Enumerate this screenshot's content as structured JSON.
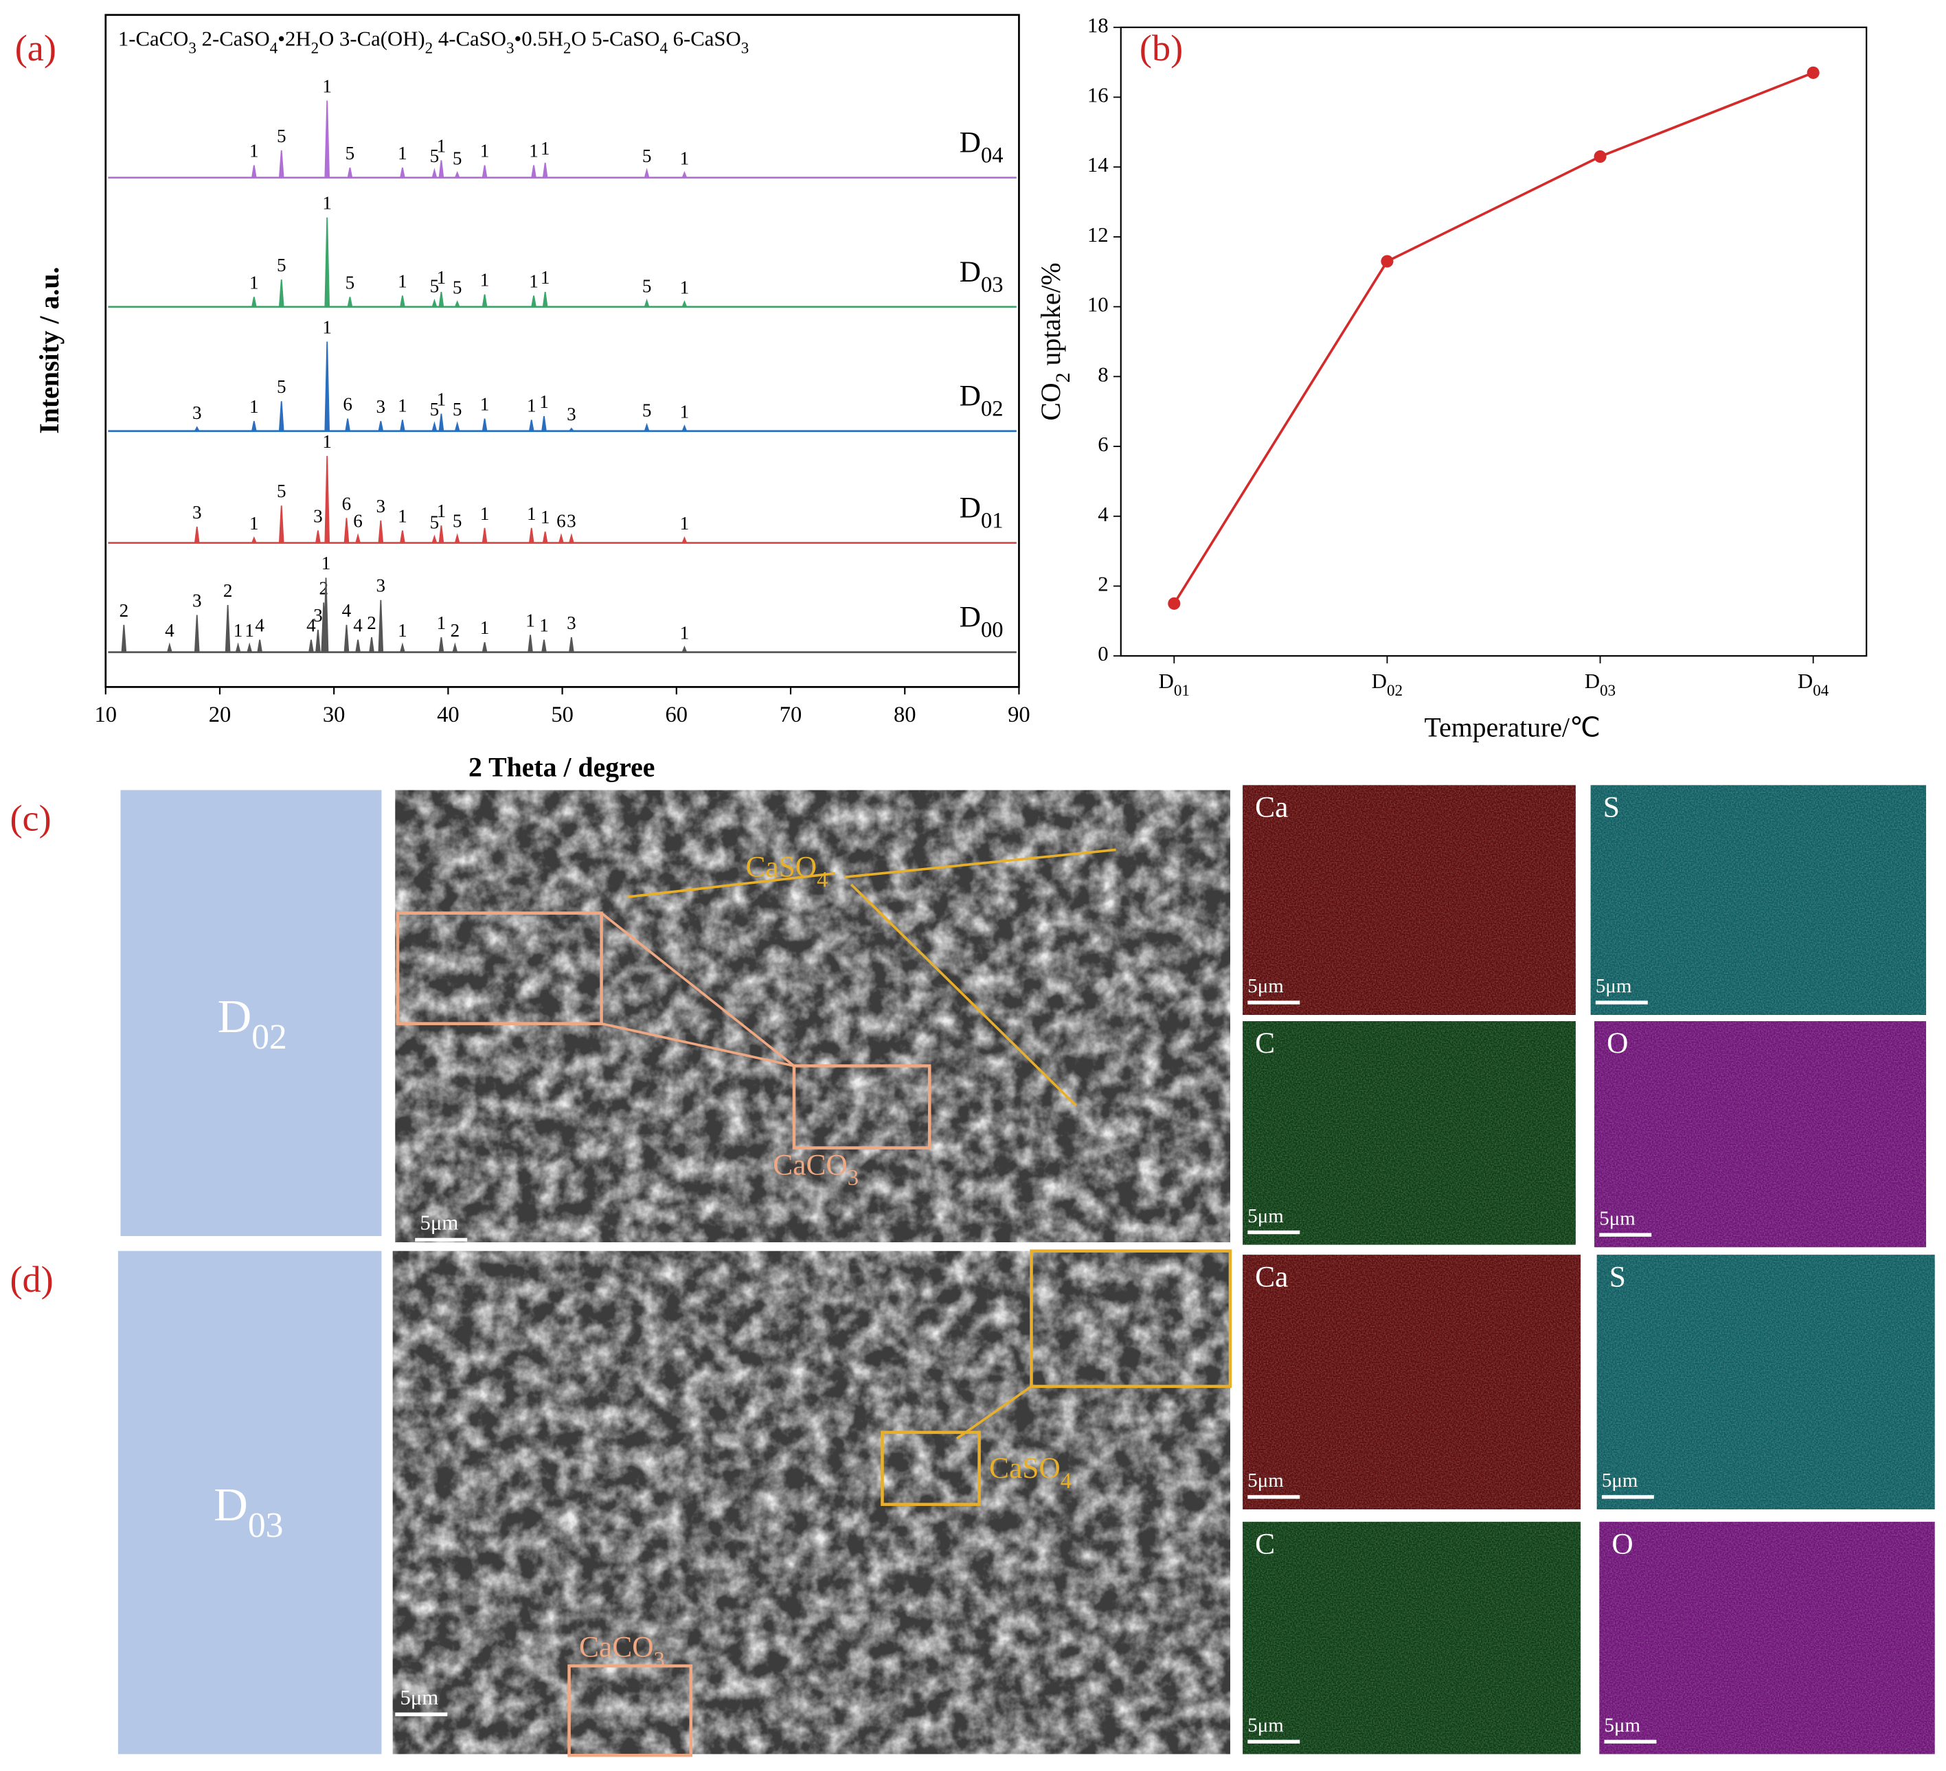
{
  "chart_data": [
    {
      "type": "xrd",
      "panel_label": "(a)",
      "legend_text": "1-CaCO3   2-CaSO4•2H2O  3-Ca(OH)2  4-CaSO3•0.5H2O  5-CaSO4  6-CaSO3",
      "xlabel": "2 Theta / degree",
      "ylabel": "Intensity / a.u.",
      "xlim": [
        10,
        90
      ],
      "xticks": [
        10,
        20,
        30,
        40,
        50,
        60,
        70,
        80,
        90
      ],
      "series": [
        {
          "name": "D04",
          "color": "#b06fd6",
          "x": [
            23.0,
            25.4,
            29.4,
            31.4,
            36.0,
            38.8,
            39.4,
            40.8,
            43.2,
            47.5,
            48.5,
            57.4,
            60.7
          ],
          "values": [
            10,
            22,
            62,
            8,
            8,
            6,
            14,
            4,
            10,
            10,
            12,
            6,
            4
          ],
          "peak_labels": [
            "1",
            "5",
            "1",
            "5",
            "1",
            "5",
            "1",
            "5",
            "1",
            "1",
            "1",
            "5",
            "1"
          ]
        },
        {
          "name": "D03",
          "color": "#3aa66a",
          "x": [
            23.0,
            25.4,
            29.4,
            31.4,
            36.0,
            38.8,
            39.4,
            40.8,
            43.2,
            47.5,
            48.5,
            57.4,
            60.7
          ],
          "values": [
            8,
            22,
            72,
            8,
            9,
            5,
            12,
            4,
            10,
            9,
            12,
            5,
            4
          ],
          "peak_labels": [
            "1",
            "5",
            "1",
            "5",
            "1",
            "5",
            "1",
            "5",
            "1",
            "1",
            "1",
            "5",
            "1"
          ]
        },
        {
          "name": "D02",
          "color": "#2a6fbf",
          "x": [
            18.0,
            23.0,
            25.4,
            29.4,
            31.2,
            34.1,
            36.0,
            38.8,
            39.4,
            40.8,
            43.2,
            47.3,
            48.4,
            50.8,
            57.4,
            60.7
          ],
          "values": [
            3,
            8,
            24,
            72,
            10,
            8,
            9,
            6,
            14,
            6,
            10,
            9,
            12,
            2,
            5,
            4
          ],
          "peak_labels": [
            "3",
            "1",
            "5",
            "1",
            "6",
            "3",
            "1",
            "5",
            "1",
            "5",
            "1",
            "1",
            "1",
            "3",
            "5",
            "1"
          ]
        },
        {
          "name": "D01",
          "color": "#d84444",
          "x": [
            18.0,
            23.0,
            25.4,
            28.6,
            29.4,
            31.1,
            32.1,
            34.1,
            36.0,
            38.8,
            39.4,
            40.8,
            43.2,
            47.3,
            48.5,
            49.9,
            50.8,
            60.7
          ],
          "values": [
            13,
            4,
            30,
            10,
            70,
            20,
            6,
            18,
            10,
            5,
            14,
            6,
            12,
            12,
            9,
            6,
            6,
            4
          ],
          "peak_labels": [
            "3",
            "1",
            "5",
            "3",
            "1",
            "6",
            "6",
            "3",
            "1",
            "5",
            "1",
            "5",
            "1",
            "1",
            "1",
            "6",
            "3",
            "1"
          ]
        },
        {
          "name": "D00",
          "color": "#555555",
          "x": [
            11.6,
            15.6,
            18.0,
            20.7,
            21.6,
            22.6,
            23.5,
            28.0,
            28.6,
            29.1,
            29.3,
            31.1,
            32.1,
            33.3,
            34.1,
            36.0,
            39.4,
            40.6,
            43.2,
            47.2,
            48.4,
            50.8,
            60.7
          ],
          "values": [
            22,
            6,
            30,
            38,
            6,
            6,
            10,
            10,
            18,
            40,
            60,
            22,
            10,
            12,
            42,
            6,
            12,
            6,
            8,
            14,
            10,
            12,
            4
          ],
          "peak_labels": [
            "2",
            "4",
            "3",
            "2",
            "1",
            "1",
            "4",
            "4",
            "3",
            "2",
            "1",
            "4",
            "4",
            "2",
            "3",
            "1",
            "1",
            "2",
            "1",
            "1",
            "1",
            "3",
            "1"
          ]
        }
      ]
    },
    {
      "type": "line",
      "panel_label": "(b)",
      "xlabel": "Temperature/℃",
      "ylabel": "CO2 uptake/%",
      "categories": [
        "D01",
        "D02",
        "D03",
        "D04"
      ],
      "values": [
        1.5,
        11.3,
        14.3,
        16.7
      ],
      "color": "#d42a2a",
      "ylim": [
        0,
        18
      ],
      "yticks": [
        0,
        2,
        4,
        6,
        8,
        10,
        12,
        14,
        16,
        18
      ]
    }
  ],
  "images": [
    {
      "panel_label": "(c)",
      "sample": "D02",
      "annotations": [
        "CaSO4",
        "CaCO3"
      ],
      "scale_bar": "5μm",
      "maps": [
        {
          "element": "Ca",
          "scale_bar": "5μm"
        },
        {
          "element": "S",
          "scale_bar": "5μm"
        },
        {
          "element": "C",
          "scale_bar": "5μm"
        },
        {
          "element": "O",
          "scale_bar": "5μm"
        }
      ]
    },
    {
      "panel_label": "(d)",
      "sample": "D03",
      "annotations": [
        "CaSO4",
        "CaCO3"
      ],
      "scale_bar": "5μm",
      "maps": [
        {
          "element": "Ca",
          "scale_bar": "5μm"
        },
        {
          "element": "S",
          "scale_bar": "5μm"
        },
        {
          "element": "C",
          "scale_bar": "5μm"
        },
        {
          "element": "O",
          "scale_bar": "5μm"
        }
      ]
    }
  ]
}
